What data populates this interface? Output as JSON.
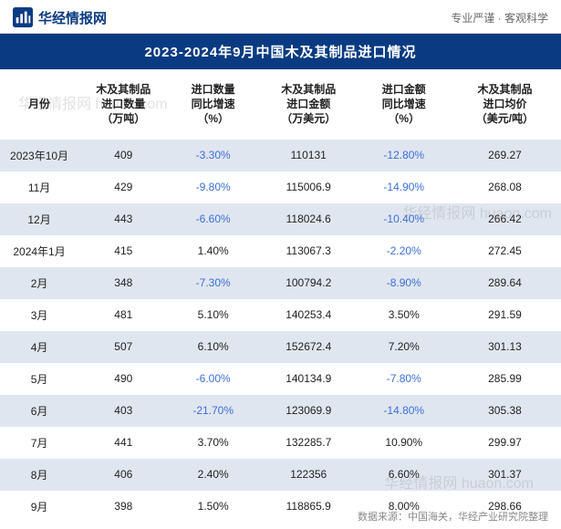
{
  "header": {
    "brand_text": "华经情报网",
    "slogan": "专业严谨 · 客观科学",
    "logo_bg": "#0a3b82",
    "logo_bar": "#ffffff"
  },
  "title": "2023-2024年9月中国木及其制品进口情况",
  "columns": [
    "月份",
    "木及其制品\n进口数量\n（万吨）",
    "进口数量\n同比增速\n（%）",
    "木及其制品\n进口金额\n（万美元）",
    "进口金额\n同比增速\n（%）",
    "木及其制品\n进口均价\n（美元/吨）"
  ],
  "rows": [
    {
      "month": "2023年10月",
      "qty": "409",
      "qty_growth": "-3.30%",
      "qty_growth_neg": true,
      "amount": "110131",
      "amt_growth": "-12.80%",
      "amt_growth_neg": true,
      "avg": "269.27"
    },
    {
      "month": "11月",
      "qty": "429",
      "qty_growth": "-9.80%",
      "qty_growth_neg": true,
      "amount": "115006.9",
      "amt_growth": "-14.90%",
      "amt_growth_neg": true,
      "avg": "268.08"
    },
    {
      "month": "12月",
      "qty": "443",
      "qty_growth": "-6.60%",
      "qty_growth_neg": true,
      "amount": "118024.6",
      "amt_growth": "-10.40%",
      "amt_growth_neg": true,
      "avg": "266.42"
    },
    {
      "month": "2024年1月",
      "qty": "415",
      "qty_growth": "1.40%",
      "qty_growth_neg": false,
      "amount": "113067.3",
      "amt_growth": "-2.20%",
      "amt_growth_neg": true,
      "avg": "272.45"
    },
    {
      "month": "2月",
      "qty": "348",
      "qty_growth": "-7.30%",
      "qty_growth_neg": true,
      "amount": "100794.2",
      "amt_growth": "-8.90%",
      "amt_growth_neg": true,
      "avg": "289.64"
    },
    {
      "month": "3月",
      "qty": "481",
      "qty_growth": "5.10%",
      "qty_growth_neg": false,
      "amount": "140253.4",
      "amt_growth": "3.50%",
      "amt_growth_neg": false,
      "avg": "291.59"
    },
    {
      "month": "4月",
      "qty": "507",
      "qty_growth": "6.10%",
      "qty_growth_neg": false,
      "amount": "152672.4",
      "amt_growth": "7.20%",
      "amt_growth_neg": false,
      "avg": "301.13"
    },
    {
      "month": "5月",
      "qty": "490",
      "qty_growth": "-6.00%",
      "qty_growth_neg": true,
      "amount": "140134.9",
      "amt_growth": "-7.80%",
      "amt_growth_neg": true,
      "avg": "285.99"
    },
    {
      "month": "6月",
      "qty": "403",
      "qty_growth": "-21.70%",
      "qty_growth_neg": true,
      "amount": "123069.9",
      "amt_growth": "-14.80%",
      "amt_growth_neg": true,
      "avg": "305.38"
    },
    {
      "month": "7月",
      "qty": "441",
      "qty_growth": "3.70%",
      "qty_growth_neg": false,
      "amount": "132285.7",
      "amt_growth": "10.90%",
      "amt_growth_neg": false,
      "avg": "299.97"
    },
    {
      "month": "8月",
      "qty": "406",
      "qty_growth": "2.40%",
      "qty_growth_neg": false,
      "amount": "122356",
      "amt_growth": "6.60%",
      "amt_growth_neg": false,
      "avg": "301.37"
    },
    {
      "month": "9月",
      "qty": "398",
      "qty_growth": "1.50%",
      "qty_growth_neg": false,
      "amount": "118865.9",
      "amt_growth": "8.00%",
      "amt_growth_neg": false,
      "avg": "298.66"
    }
  ],
  "source": "数据来源：中国海关，华经产业研究院整理",
  "watermark": "华经情报网 huaon.com",
  "colors": {
    "primary": "#0a3b82",
    "alt_row": "#e0e6f0",
    "negative": "#3b6fd6",
    "text": "#222222",
    "muted": "#888888"
  }
}
